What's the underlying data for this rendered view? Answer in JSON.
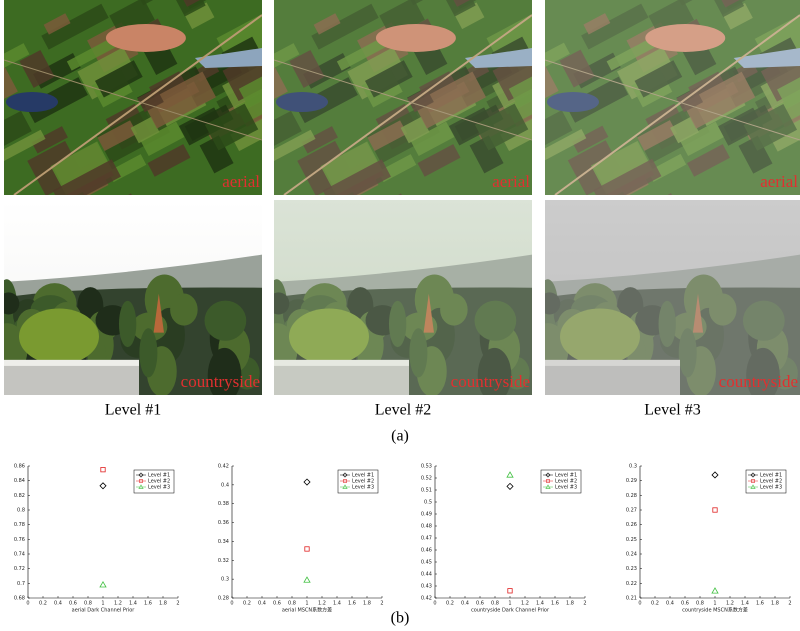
{
  "panel_a": {
    "rows": [
      [
        "aerial",
        "aerial",
        "aerial"
      ],
      [
        "countryside",
        "countryside",
        "countryside"
      ]
    ],
    "levels": [
      "Level #1",
      "Level #2",
      "Level #3"
    ],
    "caption": "(a)"
  },
  "panel_b": {
    "caption": "(b)"
  },
  "chart_data": [
    {
      "type": "scatter",
      "xlabel": "aerial Dark Channel Prior",
      "xlim": [
        0,
        2
      ],
      "xticks": [
        0,
        0.2,
        0.4,
        0.6,
        0.8,
        1,
        1.2,
        1.4,
        1.6,
        1.8,
        2
      ],
      "ylim": [
        0.68,
        0.86
      ],
      "yticks": [
        0.68,
        0.7,
        0.72,
        0.74,
        0.76,
        0.78,
        0.8,
        0.82,
        0.84,
        0.86
      ],
      "legend": "upper right",
      "series": [
        {
          "name": "Level #1",
          "color": "#000000",
          "marker": "diamond",
          "x": [
            1
          ],
          "values": [
            0.833
          ]
        },
        {
          "name": "Level #2",
          "color": "#e02020",
          "marker": "square",
          "x": [
            1
          ],
          "values": [
            0.855
          ]
        },
        {
          "name": "Level #3",
          "color": "#40c040",
          "marker": "triangle",
          "x": [
            1
          ],
          "values": [
            0.698
          ]
        }
      ]
    },
    {
      "type": "scatter",
      "xlabel": "aerial MSCN系数方差",
      "xlim": [
        0,
        2
      ],
      "xticks": [
        0,
        0.2,
        0.4,
        0.6,
        0.8,
        1,
        1.2,
        1.4,
        1.6,
        1.8,
        2
      ],
      "ylim": [
        0.28,
        0.42
      ],
      "yticks": [
        0.28,
        0.3,
        0.32,
        0.34,
        0.36,
        0.38,
        0.4,
        0.42
      ],
      "legend": "upper right",
      "series": [
        {
          "name": "Level #1",
          "color": "#000000",
          "marker": "diamond",
          "x": [
            1
          ],
          "values": [
            0.403
          ]
        },
        {
          "name": "Level #2",
          "color": "#e02020",
          "marker": "square",
          "x": [
            1
          ],
          "values": [
            0.332
          ]
        },
        {
          "name": "Level #3",
          "color": "#40c040",
          "marker": "triangle",
          "x": [
            1
          ],
          "values": [
            0.299
          ]
        }
      ]
    },
    {
      "type": "scatter",
      "xlabel": "countryside Dark Channel Prior",
      "xlim": [
        0,
        2
      ],
      "xticks": [
        0,
        0.2,
        0.4,
        0.6,
        0.8,
        1,
        1.2,
        1.4,
        1.6,
        1.8,
        2
      ],
      "ylim": [
        0.42,
        0.53
      ],
      "yticks": [
        0.42,
        0.43,
        0.44,
        0.45,
        0.46,
        0.47,
        0.48,
        0.49,
        0.5,
        0.51,
        0.52,
        0.53
      ],
      "legend": "upper right",
      "series": [
        {
          "name": "Level #1",
          "color": "#000000",
          "marker": "diamond",
          "x": [
            1
          ],
          "values": [
            0.513
          ]
        },
        {
          "name": "Level #2",
          "color": "#e02020",
          "marker": "square",
          "x": [
            1
          ],
          "values": [
            0.426
          ]
        },
        {
          "name": "Level #3",
          "color": "#40c040",
          "marker": "triangle",
          "x": [
            1
          ],
          "values": [
            0.5225
          ]
        }
      ]
    },
    {
      "type": "scatter",
      "xlabel": "countryside MSCN系数方差",
      "xlim": [
        0,
        2
      ],
      "xticks": [
        0,
        0.2,
        0.4,
        0.6,
        0.8,
        1,
        1.2,
        1.4,
        1.6,
        1.8,
        2
      ],
      "ylim": [
        0.21,
        0.3
      ],
      "yticks": [
        0.21,
        0.22,
        0.23,
        0.24,
        0.25,
        0.26,
        0.27,
        0.28,
        0.29,
        0.3
      ],
      "legend": "upper right",
      "series": [
        {
          "name": "Level #1",
          "color": "#000000",
          "marker": "diamond",
          "x": [
            1
          ],
          "values": [
            0.2939
          ]
        },
        {
          "name": "Level #2",
          "color": "#e02020",
          "marker": "square",
          "x": [
            1
          ],
          "values": [
            0.27
          ]
        },
        {
          "name": "Level #3",
          "color": "#40c040",
          "marker": "triangle",
          "x": [
            1
          ],
          "values": [
            0.2148
          ]
        }
      ]
    }
  ]
}
